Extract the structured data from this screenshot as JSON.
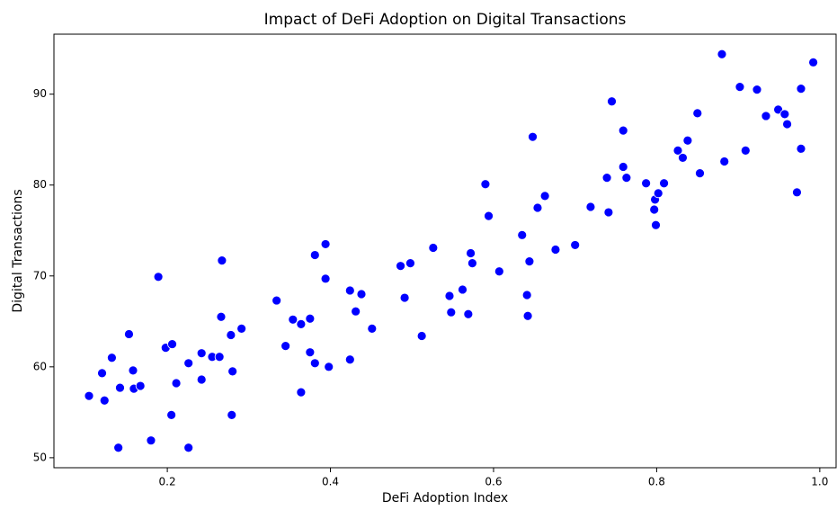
{
  "chart_data": {
    "type": "scatter",
    "title": "Impact of DeFi Adoption on Digital Transactions",
    "xlabel": "DeFi Adoption Index",
    "ylabel": "Digital Transactions",
    "color": "#0000ff",
    "x": [
      0.104,
      0.12,
      0.123,
      0.132,
      0.14,
      0.142,
      0.153,
      0.158,
      0.159,
      0.167,
      0.18,
      0.189,
      0.198,
      0.205,
      0.206,
      0.211,
      0.226,
      0.226,
      0.242,
      0.242,
      0.255,
      0.264,
      0.266,
      0.267,
      0.278,
      0.28,
      0.279,
      0.291,
      0.334,
      0.345,
      0.354,
      0.364,
      0.364,
      0.375,
      0.375,
      0.381,
      0.381,
      0.394,
      0.394,
      0.398,
      0.424,
      0.424,
      0.431,
      0.438,
      0.451,
      0.486,
      0.491,
      0.498,
      0.512,
      0.526,
      0.546,
      0.548,
      0.562,
      0.569,
      0.572,
      0.574,
      0.59,
      0.594,
      0.607,
      0.635,
      0.641,
      0.642,
      0.644,
      0.648,
      0.654,
      0.663,
      0.676,
      0.7,
      0.719,
      0.739,
      0.741,
      0.745,
      0.759,
      0.759,
      0.763,
      0.787,
      0.797,
      0.798,
      0.799,
      0.802,
      0.809,
      0.826,
      0.832,
      0.838,
      0.85,
      0.853,
      0.88,
      0.883,
      0.902,
      0.909,
      0.923,
      0.934,
      0.949,
      0.957,
      0.96,
      0.972,
      0.977,
      0.977,
      0.992
    ],
    "y": [
      56.8,
      59.3,
      56.3,
      61.0,
      51.1,
      57.7,
      63.6,
      59.6,
      57.6,
      57.9,
      51.9,
      69.9,
      62.1,
      54.7,
      62.5,
      58.2,
      60.4,
      51.1,
      58.6,
      61.5,
      61.1,
      61.1,
      65.5,
      71.7,
      63.5,
      59.5,
      54.7,
      64.2,
      67.3,
      62.3,
      65.2,
      64.7,
      57.2,
      65.3,
      61.6,
      60.4,
      72.3,
      73.5,
      69.7,
      60.0,
      60.8,
      68.4,
      66.1,
      68.0,
      64.2,
      71.1,
      67.6,
      71.4,
      63.4,
      73.1,
      67.8,
      66.0,
      68.5,
      65.8,
      72.5,
      71.4,
      80.1,
      76.6,
      70.5,
      74.5,
      67.9,
      65.6,
      71.6,
      85.3,
      77.5,
      78.8,
      72.9,
      73.4,
      77.6,
      80.8,
      77.0,
      89.2,
      86.0,
      82.0,
      80.8,
      80.2,
      77.3,
      78.4,
      75.6,
      79.1,
      80.2,
      83.8,
      83.0,
      84.9,
      87.9,
      81.3,
      94.4,
      82.6,
      90.8,
      83.8,
      90.5,
      87.6,
      88.3,
      87.8,
      86.7,
      79.2,
      90.6,
      84.0,
      93.5
    ],
    "xlim": [
      0.061,
      1.02
    ],
    "ylim": [
      48.9,
      96.6
    ],
    "xticks": [
      0.2,
      0.4,
      0.6,
      0.8,
      {
        "value": 1,
        "label": "1.0"
      }
    ],
    "yticks": [
      50,
      60,
      70,
      80,
      90
    ]
  }
}
